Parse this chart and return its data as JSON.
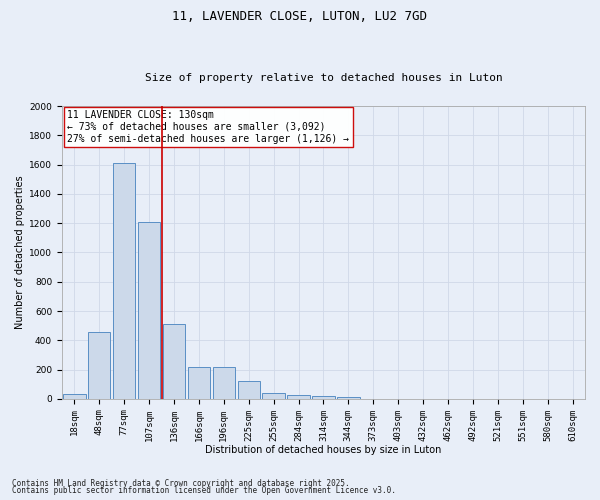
{
  "title": "11, LAVENDER CLOSE, LUTON, LU2 7GD",
  "subtitle": "Size of property relative to detached houses in Luton",
  "xlabel": "Distribution of detached houses by size in Luton",
  "ylabel": "Number of detached properties",
  "categories": [
    "18sqm",
    "48sqm",
    "77sqm",
    "107sqm",
    "136sqm",
    "166sqm",
    "196sqm",
    "225sqm",
    "255sqm",
    "284sqm",
    "314sqm",
    "344sqm",
    "373sqm",
    "403sqm",
    "432sqm",
    "462sqm",
    "492sqm",
    "521sqm",
    "551sqm",
    "580sqm",
    "610sqm"
  ],
  "bar_values": [
    35,
    460,
    1610,
    1210,
    510,
    215,
    215,
    125,
    40,
    25,
    20,
    15,
    0,
    0,
    0,
    0,
    0,
    0,
    0,
    0,
    0
  ],
  "bar_color": "#ccd9ea",
  "bar_edge_color": "#5a8fc5",
  "vline_color": "#cc0000",
  "vline_x": 3.5,
  "annotation_text": "11 LAVENDER CLOSE: 130sqm\n← 73% of detached houses are smaller (3,092)\n27% of semi-detached houses are larger (1,126) →",
  "annotation_box_color": "#ffffff",
  "annotation_box_edgecolor": "#cc0000",
  "ylim": [
    0,
    2000
  ],
  "yticks": [
    0,
    200,
    400,
    600,
    800,
    1000,
    1200,
    1400,
    1600,
    1800,
    2000
  ],
  "grid_color": "#d0d8e8",
  "bg_color": "#e8eef8",
  "fig_bg_color": "#e8eef8",
  "footer_line1": "Contains HM Land Registry data © Crown copyright and database right 2025.",
  "footer_line2": "Contains public sector information licensed under the Open Government Licence v3.0.",
  "title_fontsize": 9,
  "subtitle_fontsize": 8,
  "axis_label_fontsize": 7,
  "tick_fontsize": 6.5,
  "annotation_fontsize": 7,
  "footer_fontsize": 5.5
}
